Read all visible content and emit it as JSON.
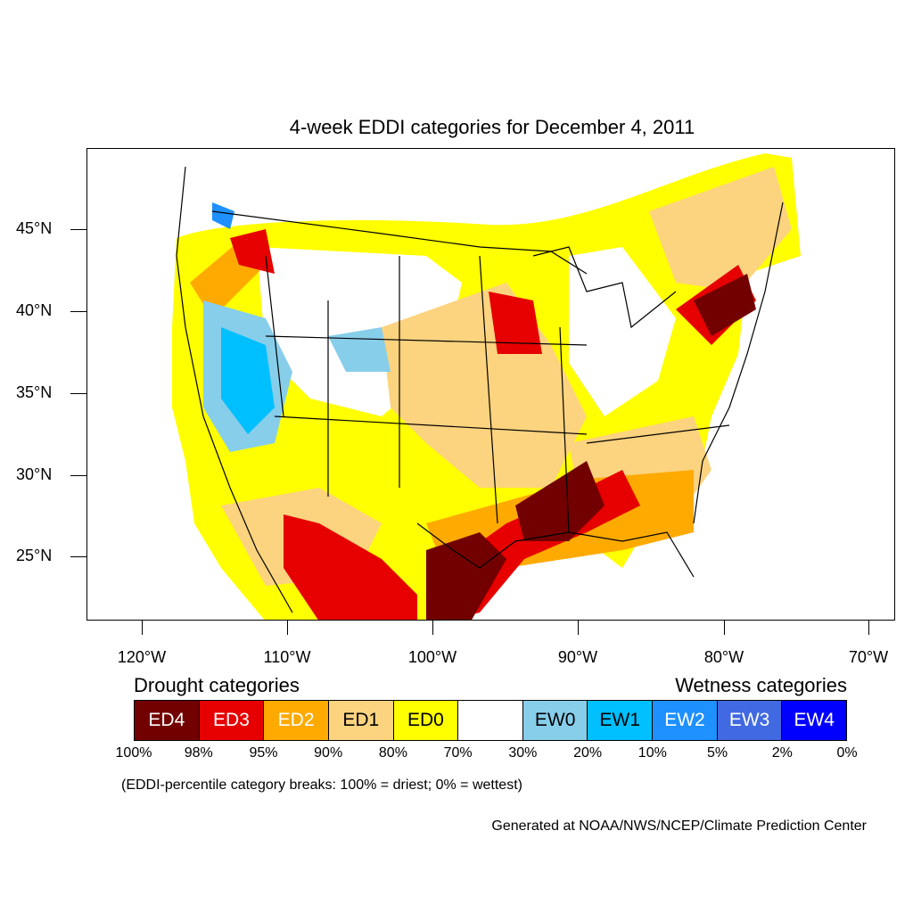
{
  "title": "4-week EDDI categories for December 4, 2011",
  "y_axis_labels": [
    "45°N",
    "40°N",
    "35°N",
    "30°N",
    "25°N"
  ],
  "x_axis_labels": [
    "120°W",
    "110°W",
    "100°W",
    "90°W",
    "80°W",
    "70°W"
  ],
  "legend": {
    "drought_header": "Drought categories",
    "wetness_header": "Wetness categories",
    "categories": [
      {
        "label": "ED4",
        "color": "#730000",
        "text_color": "#ffffff"
      },
      {
        "label": "ED3",
        "color": "#e60000",
        "text_color": "#ffffff"
      },
      {
        "label": "ED2",
        "color": "#ffaa00",
        "text_color": "#ffffff"
      },
      {
        "label": "ED1",
        "color": "#fcd37f",
        "text_color": "#000000"
      },
      {
        "label": "ED0",
        "color": "#ffff00",
        "text_color": "#000000"
      },
      {
        "label": "",
        "color": "#ffffff",
        "text_color": "#000000"
      },
      {
        "label": "EW0",
        "color": "#87ceeb",
        "text_color": "#000000"
      },
      {
        "label": "EW1",
        "color": "#00bfff",
        "text_color": "#000000"
      },
      {
        "label": "EW2",
        "color": "#1e90ff",
        "text_color": "#ffffff"
      },
      {
        "label": "EW3",
        "color": "#4169e1",
        "text_color": "#ffffff"
      },
      {
        "label": "EW4",
        "color": "#0000ff",
        "text_color": "#ffffff"
      }
    ],
    "breaks": [
      "100%",
      "98%",
      "95%",
      "90%",
      "80%",
      "70%",
      "30%",
      "20%",
      "10%",
      "5%",
      "2%",
      "0%"
    ]
  },
  "note": "(EDDI-percentile category breaks: 100% = driest; 0% = wettest)",
  "credit": "Generated at NOAA/NWS/NCEP/Climate Prediction Center"
}
